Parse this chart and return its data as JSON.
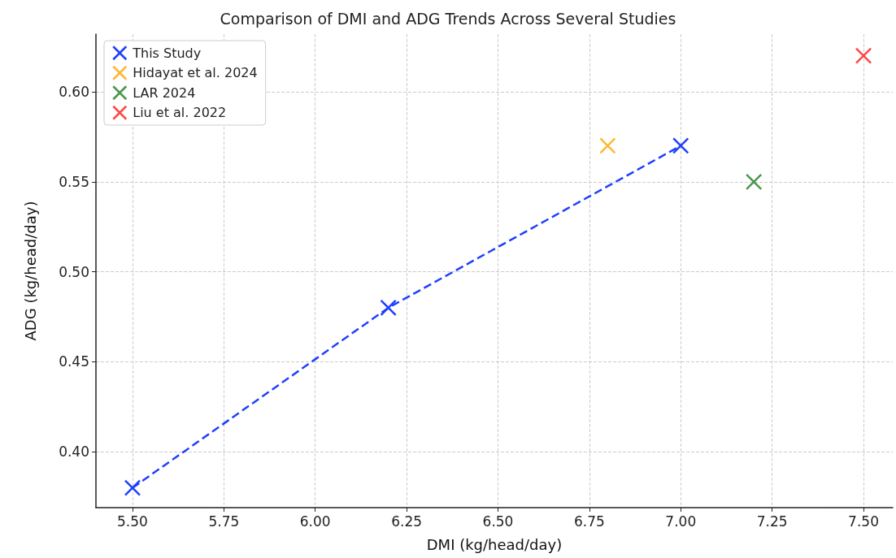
{
  "chart_data": {
    "type": "scatter",
    "title": "Comparison of DMI and ADG Trends Across Several Studies",
    "xlabel": "DMI (kg/head/day)",
    "ylabel": "ADG (kg/head/day)",
    "series": [
      {
        "name": "This Study",
        "type": "line",
        "line_style": "dashed",
        "color": "#1f3fff",
        "x": [
          5.5,
          6.2,
          7.0
        ],
        "values": [
          0.38,
          0.48,
          0.57
        ]
      },
      {
        "name": "Hidayat et al. 2024",
        "color": "#ffa500",
        "x": [
          6.8
        ],
        "values": [
          0.57
        ]
      },
      {
        "name": "LAR 2024",
        "color": "#1e7d1e",
        "x": [
          7.2
        ],
        "values": [
          0.55
        ]
      },
      {
        "name": "Liu et al. 2022",
        "color": "#ff1a1a",
        "x": [
          7.5
        ],
        "values": [
          0.62
        ]
      }
    ],
    "xlim": [
      5.4,
      7.58
    ],
    "ylim": [
      0.369,
      0.632
    ],
    "xticks": [
      {
        "value": 5.5,
        "label": "5.50"
      },
      {
        "value": 5.75,
        "label": "5.75"
      },
      {
        "value": 6,
        "label": "6.00"
      },
      {
        "value": 6.25,
        "label": "6.25"
      },
      {
        "value": 6.5,
        "label": "6.50"
      },
      {
        "value": 6.75,
        "label": "6.75"
      },
      {
        "value": 7,
        "label": "7.00"
      },
      {
        "value": 7.25,
        "label": "7.25"
      },
      {
        "value": 7.5,
        "label": "7.50"
      }
    ],
    "yticks": [
      {
        "value": 0.4,
        "label": "0.40"
      },
      {
        "value": 0.45,
        "label": "0.45"
      },
      {
        "value": 0.5,
        "label": "0.50"
      },
      {
        "value": 0.55,
        "label": "0.55"
      },
      {
        "value": 0.6,
        "label": "0.60"
      }
    ],
    "grid": true,
    "legend": "top left",
    "marker": "cross"
  }
}
